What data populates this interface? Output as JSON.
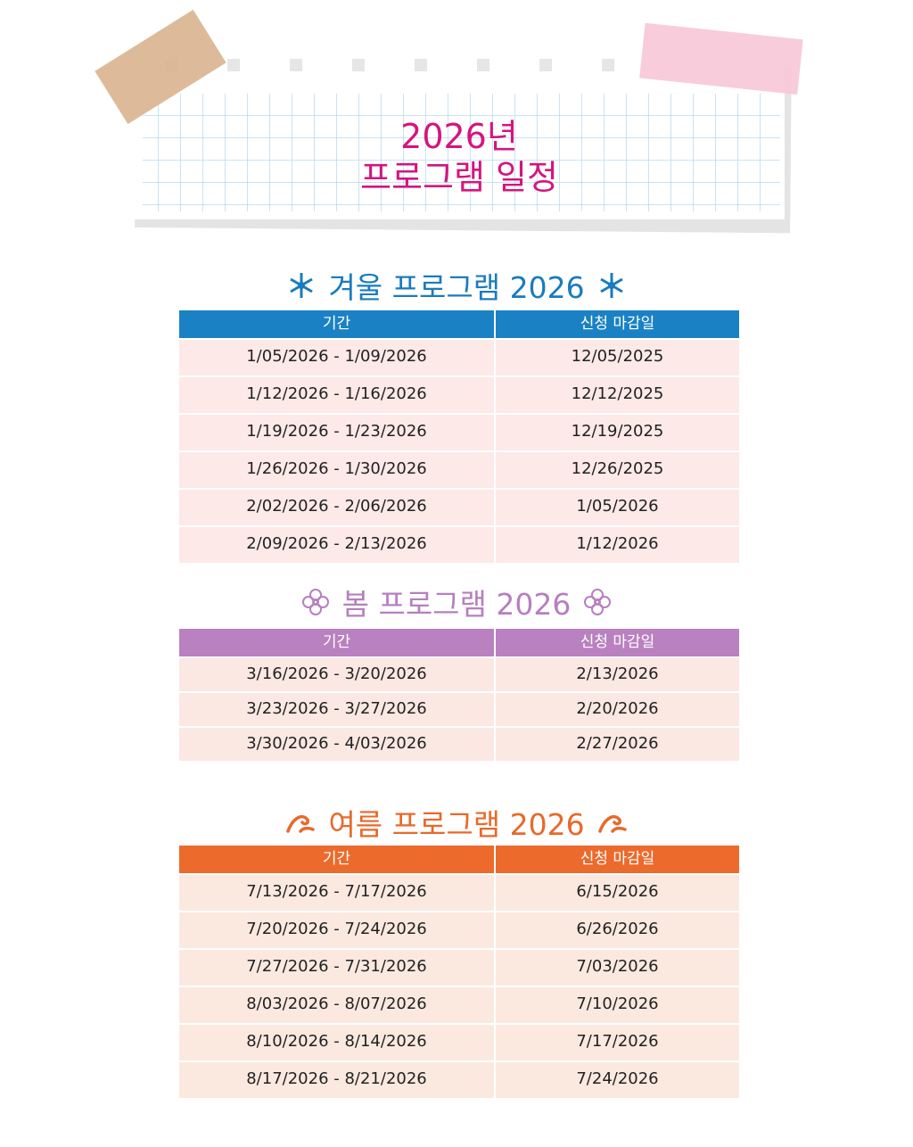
{
  "header": {
    "title_line1": "2026년",
    "title_line2": "프로그램 일정"
  },
  "sections": [
    {
      "title": "겨울 프로그램 2026",
      "columns": [
        "기간",
        "신청 마감일"
      ],
      "rows": [
        [
          "1/05/2026 - 1/09/2026",
          "12/05/2025"
        ],
        [
          "1/12/2026 - 1/16/2026",
          "12/12/2025"
        ],
        [
          "1/19/2026 - 1/23/2026",
          "12/19/2025"
        ],
        [
          "1/26/2026 - 1/30/2026",
          "12/26/2025"
        ],
        [
          "2/02/2026 - 2/06/2026",
          "1/05/2026"
        ],
        [
          "2/09/2026 - 2/13/2026",
          "1/12/2026"
        ]
      ]
    },
    {
      "title": "봄 프로그램 2026",
      "columns": [
        "기간",
        "신청 마감일"
      ],
      "rows": [
        [
          "3/16/2026 - 3/20/2026",
          "2/13/2026"
        ],
        [
          "3/23/2026 - 3/27/2026",
          "2/20/2026"
        ],
        [
          "3/30/2026 - 4/03/2026",
          "2/27/2026"
        ]
      ]
    },
    {
      "title": "여름 프로그램 2026",
      "columns": [
        "기간",
        "신청 마감일"
      ],
      "rows": [
        [
          "7/13/2026 - 7/17/2026",
          "6/15/2026"
        ],
        [
          "7/20/2026 - 7/24/2026",
          "6/26/2026"
        ],
        [
          "7/27/2026 - 7/31/2026",
          "7/03/2026"
        ],
        [
          "8/03/2026 - 8/07/2026",
          "7/10/2026"
        ],
        [
          "8/10/2026 - 8/14/2026",
          "7/17/2026"
        ],
        [
          "8/17/2026 - 8/21/2026",
          "7/24/2026"
        ]
      ]
    }
  ]
}
